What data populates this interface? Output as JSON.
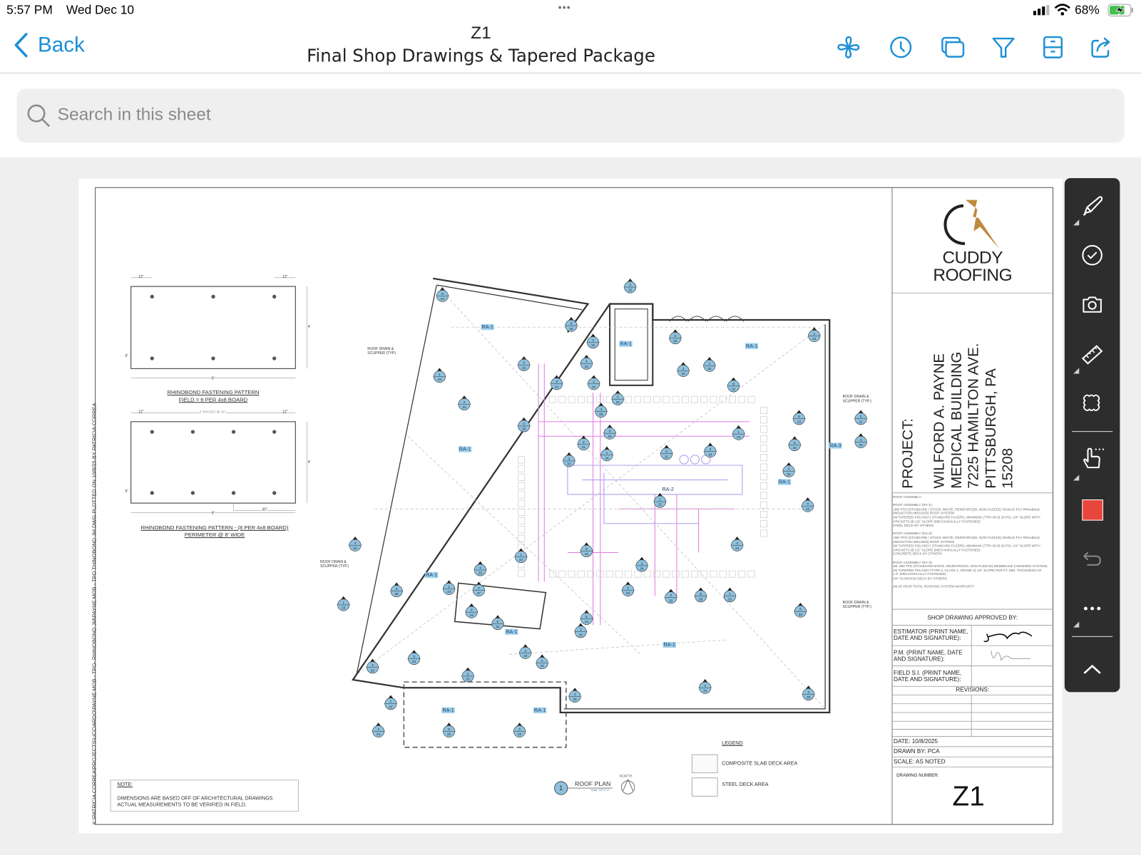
{
  "status_bar": {
    "time": "5:57 PM",
    "date": "Wed Dec 10",
    "battery": "68%",
    "dots": "•••"
  },
  "header": {
    "back_label": "Back",
    "sheet_number": "Z1",
    "sheet_title": "Final Shop Drawings & Tapered Package",
    "icons": [
      "fan-icon",
      "clock-icon",
      "overlay-icon",
      "filter-icon",
      "cabinet-icon",
      "share-icon"
    ]
  },
  "search": {
    "placeholder": "Search in this sheet"
  },
  "colors": {
    "accent": "#1b8fd6",
    "callout": "#8fc1de",
    "toolbar": "#2d2d2d",
    "markup_color": "#e8453c",
    "logo_gold": "#c08a3e"
  },
  "drawing": {
    "side_path": "K:\\PATRICIA CORREA\\PROJECTS\\UCCIARDO\\PAYNE MOB - TPO- RHINOBOND JM\\PAYNE MOB - TPO THINOBOND JM.DWG PLOTTED ON 10/8/25 BY PATRICIA CORREA",
    "pattern1": {
      "dim_left": "12\"",
      "dim_right": "12\"",
      "dim_edge": "6\"",
      "dim_width": "8'",
      "dim_height": "4'",
      "title": "RHINOBOND FASTENING PATTERN",
      "subtitle": "FIELD = 6 PER 4x8 BOARD"
    },
    "pattern2": {
      "dim_left": "12\"",
      "dim_mid": "3 SPACES @ 24\"",
      "dim_right": "12\"",
      "dim_edge": "6\"",
      "dim_30": "30\"",
      "dim_width": "8'",
      "dim_height": "4'",
      "title": "RHINOBOND FASTENING PATTERN - (8 PER 4x8 BOARD)",
      "subtitle": "PERIMETER @ 8' WIDE"
    },
    "roof_drain": "ROOF DRAIN & SCUPPER (TYP.)",
    "ra_labels": [
      "RA-1",
      "RA-1",
      "RA-1",
      "RA-1",
      "RA-1",
      "RA-1",
      "RA-1",
      "RA-1",
      "RA-1",
      "RA-1",
      "RA-2",
      "RA-3"
    ],
    "typ": "TYP",
    "callouts": [
      [
        "8",
        "24"
      ],
      [
        "5",
        "24"
      ],
      [
        "1",
        "23"
      ],
      [
        "2",
        "24"
      ],
      [
        "5",
        "24"
      ],
      [
        "3",
        "24"
      ],
      [
        "2",
        "22"
      ],
      [
        "2",
        "23"
      ],
      [
        "4",
        "24"
      ],
      [
        "2",
        "22"
      ],
      [
        "1",
        "22"
      ],
      [
        "8",
        "22"
      ],
      [
        "3",
        "22"
      ],
      [
        "2",
        "24"
      ],
      [
        "2",
        "24"
      ],
      [
        "4",
        "25"
      ],
      [
        "3",
        "25"
      ],
      [
        "1",
        "24"
      ],
      [
        "5",
        "23"
      ],
      [
        "2",
        "21"
      ],
      [
        "4",
        "23"
      ],
      [
        "6",
        "21"
      ],
      [
        "1",
        "24"
      ],
      [
        "2",
        "24"
      ],
      [
        "5",
        "24"
      ],
      [
        "3",
        "24"
      ],
      [
        "4",
        "22"
      ],
      [
        "2",
        "22"
      ],
      [
        "1",
        "22"
      ],
      [
        "8",
        "24"
      ],
      [
        "2",
        "24"
      ],
      [
        "4",
        "24"
      ],
      [
        "1",
        "22"
      ],
      [
        "3",
        "22"
      ],
      [
        "4",
        "26"
      ],
      [
        "3",
        "26"
      ],
      [
        "1",
        "23"
      ],
      [
        "1",
        "24"
      ],
      [
        "2",
        "27"
      ],
      [
        "3",
        "24"
      ],
      [
        "3",
        "22"
      ],
      [
        "8",
        "25"
      ],
      [
        "1",
        "22"
      ]
    ],
    "note": {
      "title": "NOTE:",
      "lines": [
        "DIMENSIONS ARE BASED OFF OF ARCHITECTURAL DRAWINGS.",
        "ACTUAL MEASUREMENTS TO BE VERIFIED IN FIELD."
      ]
    },
    "plan_label": {
      "number": "1",
      "title": "ROOF PLAN",
      "scale": "Scale: 1/8\"=1'-0\"",
      "north": "NORTH"
    },
    "legend": {
      "title": "LEGEND",
      "items": [
        "COMPOSITE SLAB DECK AREA",
        "STEEL DECK AREA"
      ]
    }
  },
  "title_block": {
    "logo_line1": "CUDDY",
    "logo_line2": "ROOFING",
    "project_label": "PROJECT:",
    "project_lines": [
      "WILFORD A. PAYNE",
      "MEDICAL BUILDING",
      "7225 HAMILTON AVE.",
      "PITTSBURGH, PA",
      "15208"
    ],
    "spec_lines": [
      "ROOF ASSEMBLY:",
      "",
      "ROOF ASSEMBLY (RA-1):",
      ".060 TPO (STANDARD / STOCK WHITE, REINFORCED, NON-FLEECE) SINGLE-PLY RhinoBond",
      "(INDUCTION WELDED) ROOF SYSTEM",
      "JM TAPERED POLYISO ( STANDARD FACERS, MINIMUM LTTR=30.0) 20 PSI, 1/4\" SLOPE WITH",
      "CRICKETS @ 1/2\" SLOPE (MECHANICALLY FASTENED)",
      "STEEL DECK BY OTHERS",
      "",
      "ROOF ASSEMBLY (RA-2):",
      ".060 TPO (STANDARD / STOCK WHITE, REINFORCED, NON-FLEECE) SINGLE-PLY RhinoBond",
      "(INDUCTION WELDED) ROOF SYSTEM",
      "JM TAPERED POLYISO ( STANDARD FACERS, MINIMUM LTTR=30.0) 20 PSI, 1/4\" SLOPE WITH",
      "CRICKETS @ 1/2\" SLOPE (MECHANICALLY FASTENED)",
      "CONCRETE DECK BY OTHERS",
      "",
      "ROOF ASSEMBLY (RA-3):",
      "JM .060 TPO (STANDARD WHITE, REINFORCED, NON-FLEECE) MEMBRANE (ADHERED SYSTEM)",
      "JM TAPERED POLYISO (TYPE II, CLASS 1, GRADE 2) 1/4\" SLOPE PER FT, MIN. THICKNESS OF",
      "1.5\" (MECHANICALLY FASTENED)",
      "3/4\" PLYWOOD DECK BY OTHERS",
      "",
      "JM 20 YEAR TOTAL ROOFING SYSTEM WARRANTY"
    ],
    "approved_by": "SHOP DRAWING APPROVED BY:",
    "estimator": "ESTIMATOR (PRINT NAME, DATE AND SIGNATURE):",
    "pm": "P.M. (PRINT NAME, DATE AND SIGNATURE):",
    "field": "FIELD S.I. (PRINT NAME, DATE AND SIGNATURE):",
    "revisions": "REVISIONS:",
    "date": "DATE: 10/8/2025",
    "drawn_by": "DRAWN BY: PCA",
    "scale": "SCALE: AS NOTED",
    "drawing_number_label": "DRAWING NUMBER:",
    "drawing_number": "Z1"
  },
  "toolbar": {
    "tools": [
      "pen-tool",
      "checkmark-tool",
      "camera-tool",
      "ruler-tool",
      "cloud-tool",
      "select-tool",
      "color-swatch",
      "undo",
      "more",
      "collapse"
    ]
  }
}
